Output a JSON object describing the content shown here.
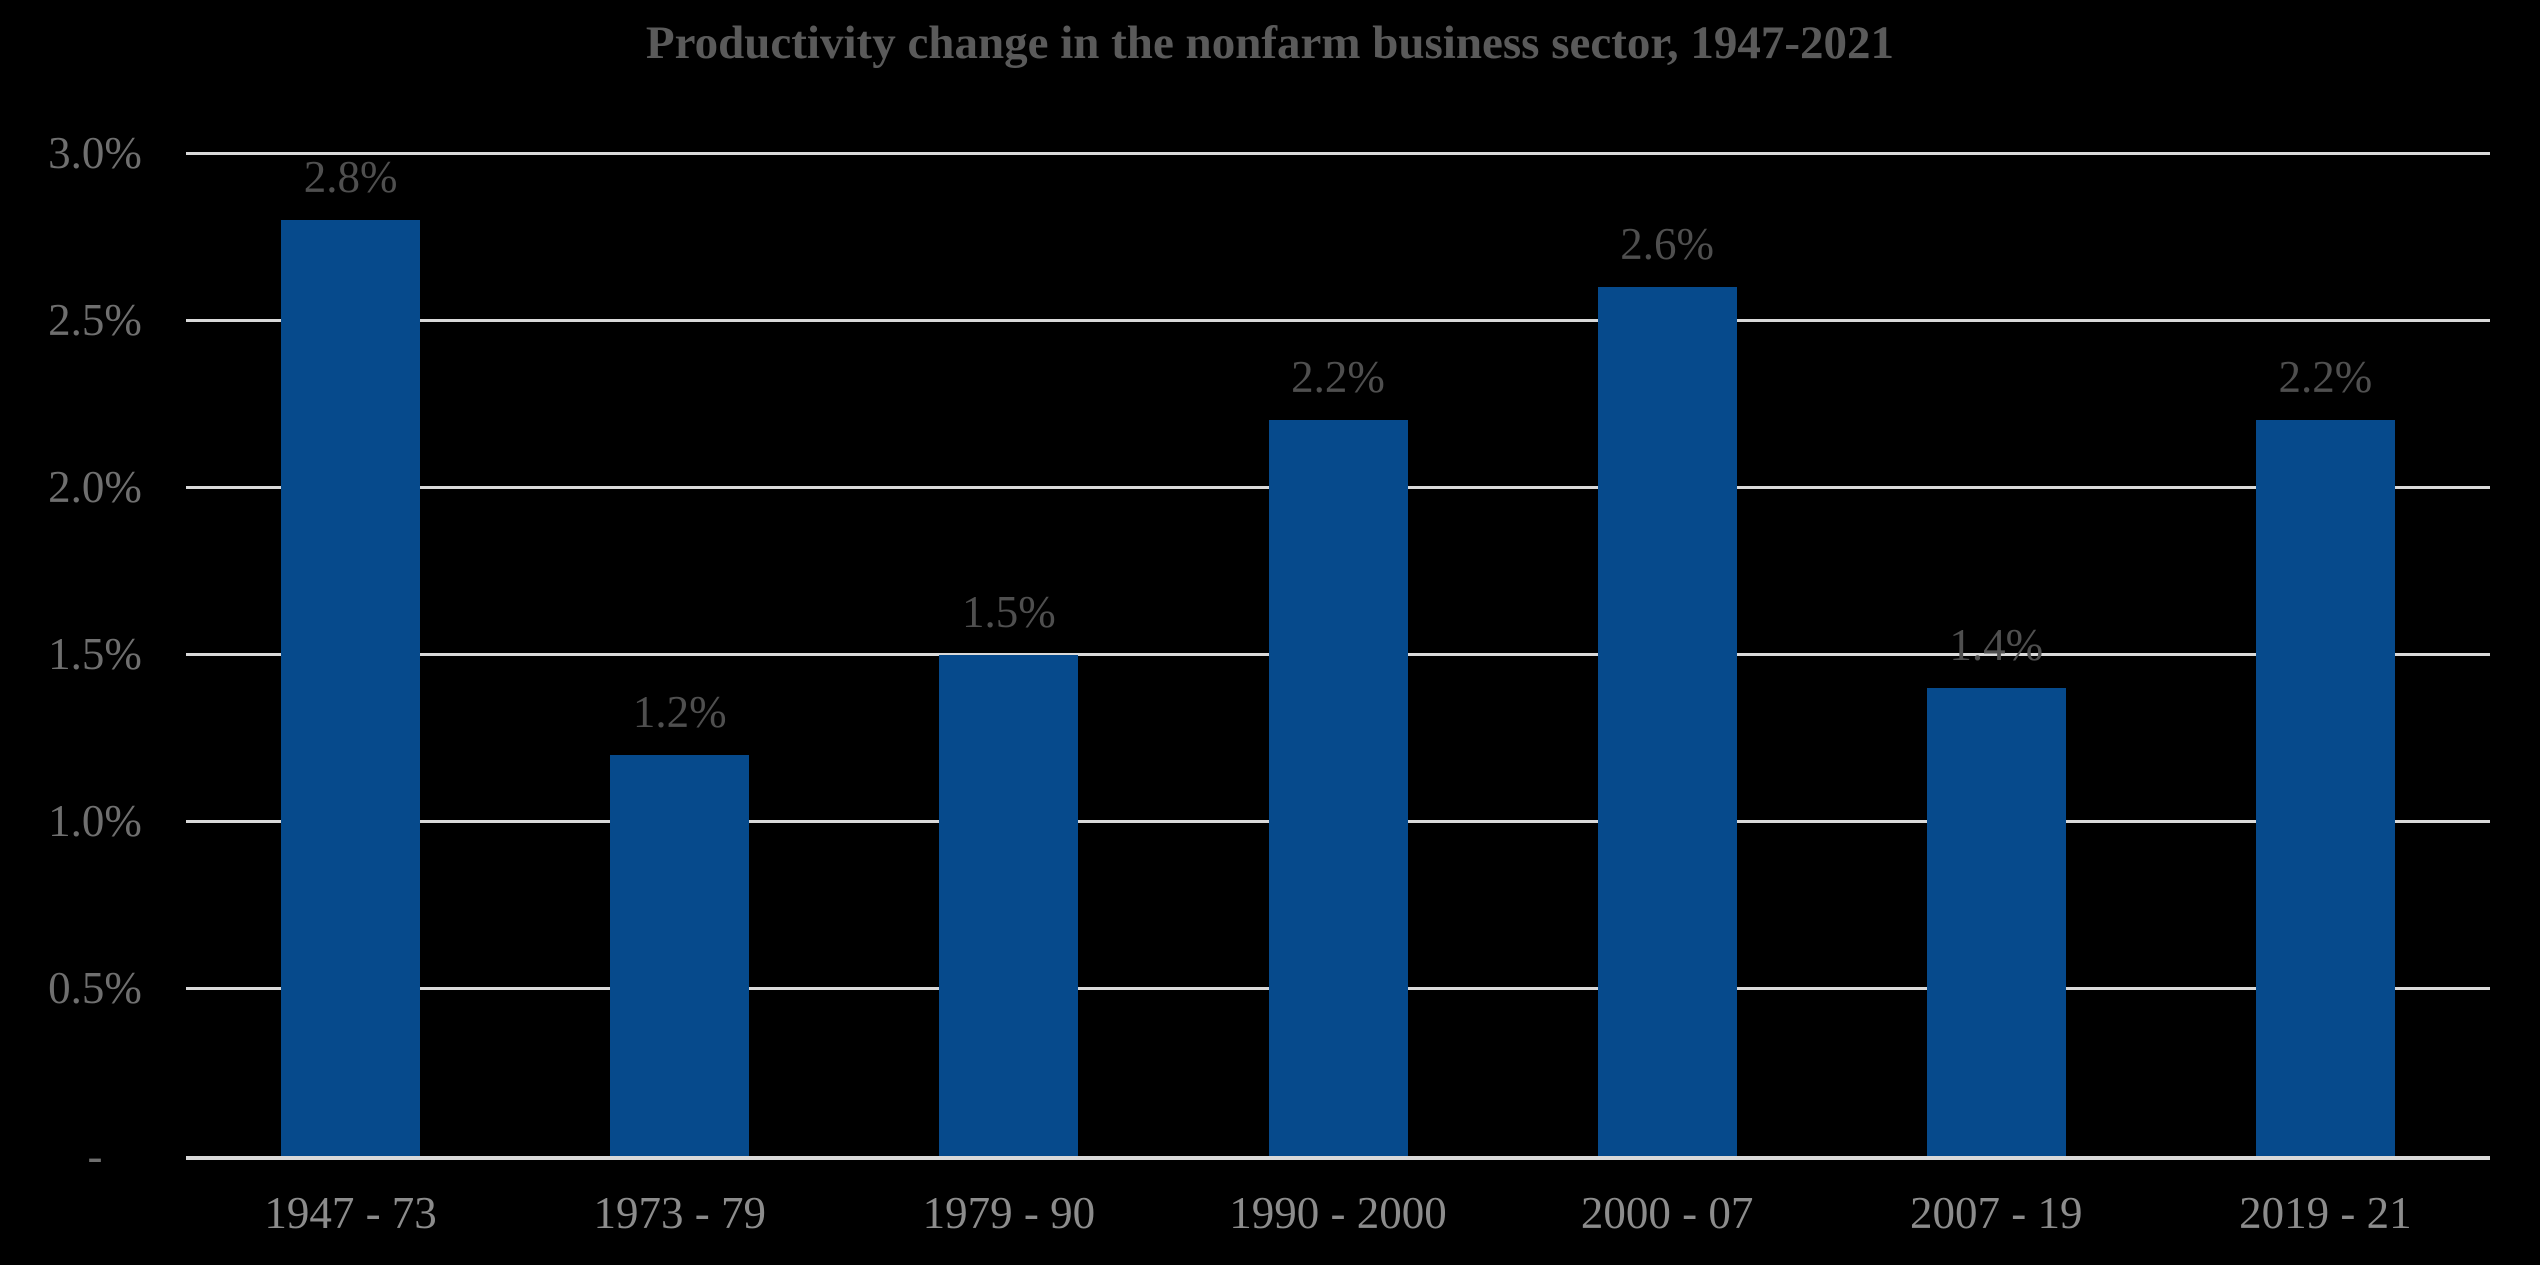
{
  "chart_data": {
    "type": "bar",
    "title": "Productivity change in the nonfarm business sector, 1947-2021",
    "categories": [
      "1947 - 73",
      "1973 - 79",
      "1979 - 90",
      "1990 - 2000",
      "2000 - 07",
      "2007 - 19",
      "2019 - 21"
    ],
    "values": [
      2.8,
      1.2,
      1.5,
      2.2,
      2.6,
      1.4,
      2.2
    ],
    "data_labels": [
      "2.8%",
      "1.2%",
      "1.5%",
      "2.2%",
      "2.6%",
      "1.4%",
      "2.2%"
    ],
    "xlabel": "",
    "ylabel": "",
    "ylim": [
      0,
      3.0
    ],
    "y_axis": {
      "ticks": [
        {
          "label": "3.0%",
          "value": 3.0
        },
        {
          "label": "2.5%",
          "value": 2.5
        },
        {
          "label": "2.0%",
          "value": 2.0
        },
        {
          "label": "1.5%",
          "value": 1.5
        },
        {
          "label": "1.0%",
          "value": 1.0
        },
        {
          "label": "0.5%",
          "value": 0.5
        },
        {
          "label": "-",
          "value": 0
        }
      ]
    },
    "grid": "horizontal",
    "legend": "none",
    "colors": {
      "background": "#000000",
      "bar": "#064A8C",
      "gridline": "#D9D9D9",
      "axis_line": "#D9D9D9",
      "title_text": "#5A5A5A",
      "y_tick_text": "#6F6F6F",
      "x_tick_text": "#8C8C8C",
      "data_label_text": "#4F4F4F"
    }
  }
}
